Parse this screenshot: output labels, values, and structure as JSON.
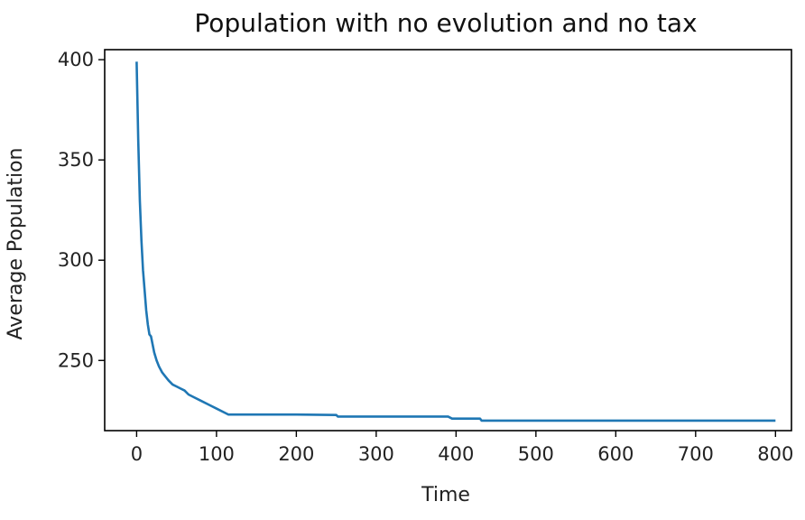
{
  "chart_data": {
    "type": "line",
    "title": "Population with no evolution and no tax",
    "xlabel": "Time",
    "ylabel": "Average Population",
    "xlim": [
      -40,
      820
    ],
    "ylim": [
      215,
      405
    ],
    "xticks": [
      0,
      100,
      200,
      300,
      400,
      500,
      600,
      700,
      800
    ],
    "yticks": [
      250,
      300,
      350,
      400
    ],
    "grid": false,
    "series": [
      {
        "color": "#1f77b4",
        "x": [
          0,
          2,
          4,
          6,
          8,
          10,
          12,
          14,
          16,
          18,
          20,
          22,
          25,
          28,
          32,
          36,
          40,
          45,
          50,
          55,
          60,
          65,
          70,
          80,
          90,
          100,
          110,
          115,
          120,
          150,
          200,
          250,
          252,
          300,
          350,
          390,
          395,
          430,
          432,
          500,
          600,
          700,
          800
        ],
        "y": [
          399,
          360,
          330,
          310,
          295,
          285,
          275,
          268,
          263,
          262,
          258,
          254,
          250,
          247,
          244,
          242,
          240,
          238,
          237,
          236,
          235,
          233,
          232,
          230,
          228,
          226,
          224,
          223,
          223,
          223,
          223,
          222.8,
          222,
          222,
          222,
          222,
          221,
          221,
          220,
          220,
          220,
          220,
          220
        ]
      }
    ]
  }
}
